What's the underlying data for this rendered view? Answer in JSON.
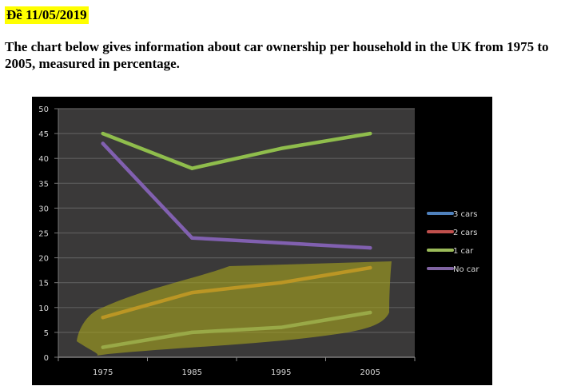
{
  "heading": "Đề 11/05/2019",
  "intro": "The chart below gives information about car ownership per household in the UK from 1975 to 2005, measured in percentage.",
  "colors": {
    "chart_bg": "#000000",
    "plot_bg": "#3a3939",
    "grid": "#5c5c5c",
    "highlight": "#a4a31f"
  },
  "chart_data": {
    "type": "line",
    "title": "",
    "xlabel": "",
    "ylabel": "",
    "categories": [
      "1975",
      "1985",
      "1995",
      "2005"
    ],
    "ylim": [
      0,
      50
    ],
    "yticks": [
      "0",
      "5",
      "10",
      "15",
      "20",
      "25",
      "30",
      "35",
      "40",
      "45",
      "50"
    ],
    "grid": true,
    "legend_position": "right",
    "series": [
      {
        "name": "3 cars",
        "values": [
          2,
          5,
          6,
          9
        ],
        "color": "#4f81bd",
        "line_color": "#86b28a"
      },
      {
        "name": "2 cars",
        "values": [
          8,
          13,
          15,
          18
        ],
        "color": "#c0504d",
        "line_color": "#e0802f"
      },
      {
        "name": "1 car",
        "values": [
          45,
          38,
          42,
          45
        ],
        "color": "#9bbb59",
        "line_color": "#8fbd4c"
      },
      {
        "name": "No car",
        "values": [
          43,
          24,
          23,
          22
        ],
        "color": "#8064a2",
        "line_color": "#8160b0"
      }
    ]
  }
}
